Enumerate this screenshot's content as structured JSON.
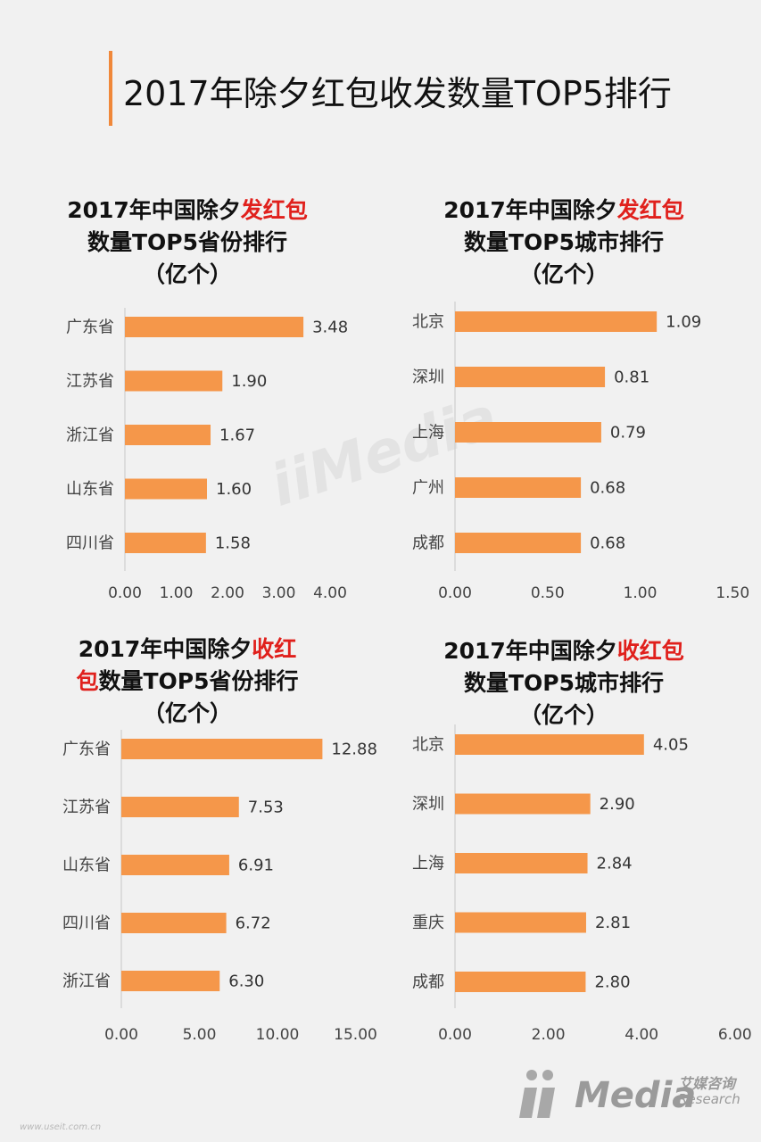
{
  "page": {
    "title": "2017年除夕红包收发数量TOP5排行",
    "footer_url": "www.useit.com.cn",
    "logo": {
      "main": "Media",
      "sub_cn": "艾媒咨询",
      "sub_en": "Research"
    },
    "colors": {
      "bar": "#f5974a",
      "accent": "#e0201c",
      "title_bar": "#f0883a"
    }
  },
  "chart_data": [
    {
      "type": "bar",
      "orientation": "horizontal",
      "title_parts": [
        "2017年中国除夕",
        "发红包",
        "数量TOP5省份排行",
        "（亿个）"
      ],
      "categories": [
        "广东省",
        "江苏省",
        "浙江省",
        "山东省",
        "四川省"
      ],
      "values": [
        3.48,
        1.9,
        1.67,
        1.6,
        1.58
      ],
      "value_labels": [
        "3.48",
        "1.90",
        "1.67",
        "1.60",
        "1.58"
      ],
      "xlim": [
        0,
        4
      ],
      "ticks": [
        "0.00",
        "1.00",
        "2.00",
        "3.00",
        "4.00"
      ],
      "tick_values": [
        0,
        1,
        2,
        3,
        4
      ]
    },
    {
      "type": "bar",
      "orientation": "horizontal",
      "title_parts": [
        "2017年中国除夕",
        "发红包",
        "数量TOP5城市排行",
        "（亿个）"
      ],
      "categories": [
        "北京",
        "深圳",
        "上海",
        "广州",
        "成都"
      ],
      "values": [
        1.09,
        0.81,
        0.79,
        0.68,
        0.68
      ],
      "value_labels": [
        "1.09",
        "0.81",
        "0.79",
        "0.68",
        "0.68"
      ],
      "xlim": [
        0,
        1.5
      ],
      "ticks": [
        "0.00",
        "0.50",
        "1.00",
        "1.50"
      ],
      "tick_values": [
        0,
        0.5,
        1.0,
        1.5
      ]
    },
    {
      "type": "bar",
      "orientation": "horizontal",
      "title_parts": [
        "2017年中国除夕",
        "收红包",
        "数量TOP5省份排行",
        "（亿个）"
      ],
      "categories": [
        "广东省",
        "江苏省",
        "山东省",
        "四川省",
        "浙江省"
      ],
      "values": [
        12.88,
        7.53,
        6.91,
        6.72,
        6.3
      ],
      "value_labels": [
        "12.88",
        "7.53",
        "6.91",
        "6.72",
        "6.30"
      ],
      "xlim": [
        0,
        15
      ],
      "ticks": [
        "0.00",
        "5.00",
        "10.00",
        "15.00"
      ],
      "tick_values": [
        0,
        5,
        10,
        15
      ]
    },
    {
      "type": "bar",
      "orientation": "horizontal",
      "title_parts": [
        "2017年中国除夕",
        "收红包",
        "数量TOP5城市排行",
        "（亿个）"
      ],
      "categories": [
        "北京",
        "深圳",
        "上海",
        "重庆",
        "成都"
      ],
      "values": [
        4.05,
        2.9,
        2.84,
        2.81,
        2.8
      ],
      "value_labels": [
        "4.05",
        "2.90",
        "2.84",
        "2.81",
        "2.80"
      ],
      "xlim": [
        0,
        6
      ],
      "ticks": [
        "0.00",
        "2.00",
        "4.00",
        "6.00"
      ],
      "tick_values": [
        0,
        2,
        4,
        6
      ]
    }
  ]
}
